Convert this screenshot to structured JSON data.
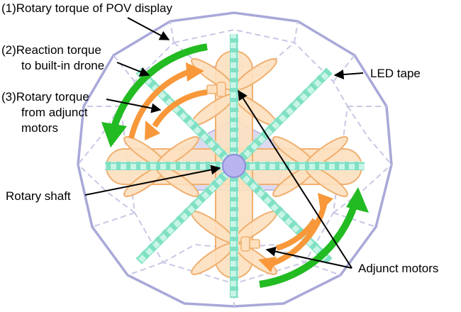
{
  "labels": {
    "rotary_torque_pov": "(1)Rotary torque of POV display",
    "reaction_torque_1": "(2)Reaction torque",
    "reaction_torque_2": "to built-in drone",
    "adjunct_torque_1": "(3)Rotary torque",
    "adjunct_torque_2": "from adjunct",
    "adjunct_torque_3": "motors",
    "led_tape": "LED tape",
    "rotary_shaft": "Rotary shaft",
    "adjunct_motors": "Adjunct motors"
  },
  "colors": {
    "frame": "#a8a8d8",
    "frame_dashed": "#c8c8e6",
    "led_tape": "#7fe0c4",
    "led_tape_dots": "#c8f5e6",
    "drone_fill": "#fde0bf",
    "drone_stroke": "#f0b070",
    "pentagon": "#c4c2e8",
    "shaft": "#b8b4f0",
    "arrow_green": "#22bb22",
    "arrow_orange": "#f8983a"
  }
}
